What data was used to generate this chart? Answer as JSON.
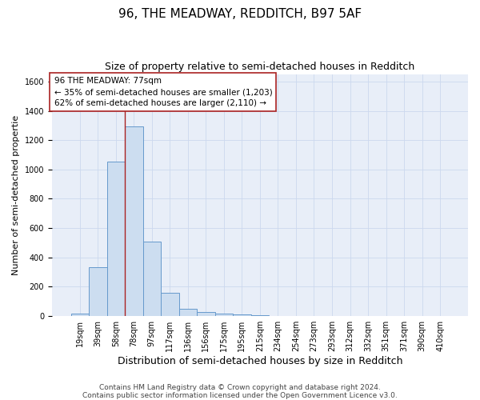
{
  "title": "96, THE MEADWAY, REDDITCH, B97 5AF",
  "subtitle": "Size of property relative to semi-detached houses in Redditch",
  "xlabel": "Distribution of semi-detached houses by size in Redditch",
  "ylabel": "Number of semi-detached propertie",
  "bar_labels": [
    "19sqm",
    "39sqm",
    "58sqm",
    "78sqm",
    "97sqm",
    "117sqm",
    "136sqm",
    "156sqm",
    "175sqm",
    "195sqm",
    "215sqm",
    "234sqm",
    "254sqm",
    "273sqm",
    "293sqm",
    "312sqm",
    "332sqm",
    "351sqm",
    "371sqm",
    "390sqm",
    "410sqm"
  ],
  "bar_values": [
    15,
    330,
    1055,
    1295,
    505,
    155,
    50,
    25,
    15,
    12,
    5,
    0,
    0,
    0,
    0,
    0,
    0,
    0,
    0,
    0,
    0
  ],
  "bar_color": "#ccddf0",
  "bar_edge_color": "#6699cc",
  "property_label": "96 THE MEADWAY: 77sqm",
  "annotation_line1": "← 35% of semi-detached houses are smaller (1,203)",
  "annotation_line2": "62% of semi-detached houses are larger (2,110) →",
  "vline_color": "#aa2222",
  "vline_x_idx": 3,
  "annotation_box_color": "#ffffff",
  "annotation_box_edge": "#aa2222",
  "ylim": [
    0,
    1650
  ],
  "yticks": [
    0,
    200,
    400,
    600,
    800,
    1000,
    1200,
    1400,
    1600
  ],
  "grid_color": "#ccd8ee",
  "background_color": "#e8eef8",
  "footer_line1": "Contains HM Land Registry data © Crown copyright and database right 2024.",
  "footer_line2": "Contains public sector information licensed under the Open Government Licence v3.0.",
  "title_fontsize": 11,
  "subtitle_fontsize": 9,
  "xlabel_fontsize": 9,
  "ylabel_fontsize": 8,
  "tick_fontsize": 7,
  "annotation_fontsize": 7.5,
  "footer_fontsize": 6.5
}
